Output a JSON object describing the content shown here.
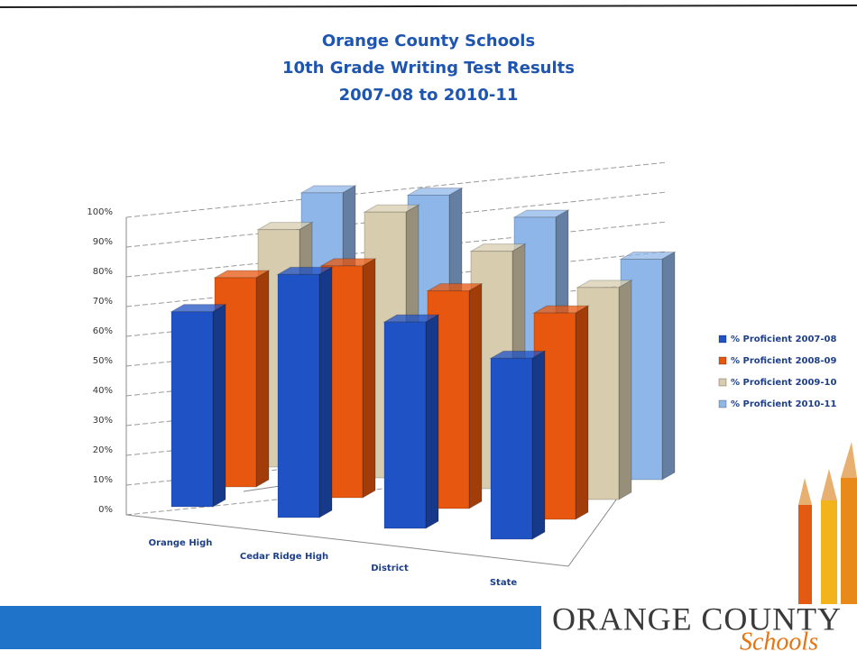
{
  "chart_data": {
    "type": "bar3d",
    "title": [
      "Orange County Schools",
      "10th Grade Writing Test Results",
      "2007-08 to 2010-11"
    ],
    "categories": [
      "Orange High",
      "Cedar Ridge High",
      "District",
      "State"
    ],
    "series": [
      {
        "name": "% Proficient 2007-08",
        "color": "#1f52c4",
        "values": [
          69,
          86,
          73,
          64
        ]
      },
      {
        "name": "% Proficient 2008-09",
        "color": "#e8570f",
        "values": [
          74,
          82,
          77,
          73
        ]
      },
      {
        "name": "% Proficient 2009-10",
        "color": "#d8ccae",
        "values": [
          84,
          94,
          84,
          75
        ]
      },
      {
        "name": "% Proficient 2010-11",
        "color": "#8fb6e8",
        "values": [
          90,
          93,
          89,
          78
        ]
      }
    ],
    "ylim": [
      0,
      100
    ],
    "yticks": [
      {
        "value": 0,
        "label": "0%"
      },
      {
        "value": 10,
        "label": "10%"
      },
      {
        "value": 20,
        "label": "20%"
      },
      {
        "value": 30,
        "label": "30%"
      },
      {
        "value": 40,
        "label": "40%"
      },
      {
        "value": 50,
        "label": "50%"
      },
      {
        "value": 60,
        "label": "60%"
      },
      {
        "value": 70,
        "label": "70%"
      },
      {
        "value": 80,
        "label": "80%"
      },
      {
        "value": 90,
        "label": "90%"
      },
      {
        "value": 100,
        "label": "100%"
      }
    ],
    "grid": true,
    "legend": "right"
  },
  "logo": {
    "name": "ORANGE COUNTY",
    "tagline": "Schools"
  }
}
